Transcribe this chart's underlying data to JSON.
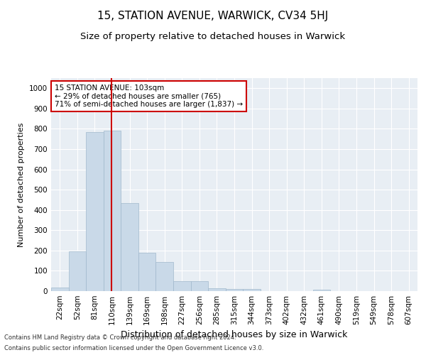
{
  "title": "15, STATION AVENUE, WARWICK, CV34 5HJ",
  "subtitle": "Size of property relative to detached houses in Warwick",
  "xlabel": "Distribution of detached houses by size in Warwick",
  "ylabel": "Number of detached properties",
  "bin_labels": [
    "22sqm",
    "52sqm",
    "81sqm",
    "110sqm",
    "139sqm",
    "169sqm",
    "198sqm",
    "227sqm",
    "256sqm",
    "285sqm",
    "315sqm",
    "344sqm",
    "373sqm",
    "402sqm",
    "432sqm",
    "461sqm",
    "490sqm",
    "519sqm",
    "549sqm",
    "578sqm",
    "607sqm"
  ],
  "bar_values": [
    18,
    195,
    785,
    790,
    435,
    190,
    145,
    50,
    50,
    15,
    12,
    10,
    0,
    0,
    0,
    8,
    0,
    0,
    0,
    0,
    0
  ],
  "bar_color": "#c9d9e8",
  "bar_edgecolor": "#a0b8cc",
  "bar_width": 1.0,
  "vline_x": 2.97,
  "vline_color": "#cc0000",
  "annotation_text": "15 STATION AVENUE: 103sqm\n← 29% of detached houses are smaller (765)\n71% of semi-detached houses are larger (1,837) →",
  "annotation_box_edgecolor": "#cc0000",
  "ylim": [
    0,
    1050
  ],
  "yticks": [
    0,
    100,
    200,
    300,
    400,
    500,
    600,
    700,
    800,
    900,
    1000
  ],
  "axes_background": "#e8eef4",
  "footer_line1": "Contains HM Land Registry data © Crown copyright and database right 2024.",
  "footer_line2": "Contains public sector information licensed under the Open Government Licence v3.0.",
  "title_fontsize": 11,
  "subtitle_fontsize": 9.5,
  "xlabel_fontsize": 9,
  "ylabel_fontsize": 8,
  "tick_fontsize": 7.5,
  "annotation_fontsize": 7.5,
  "footer_fontsize": 6
}
